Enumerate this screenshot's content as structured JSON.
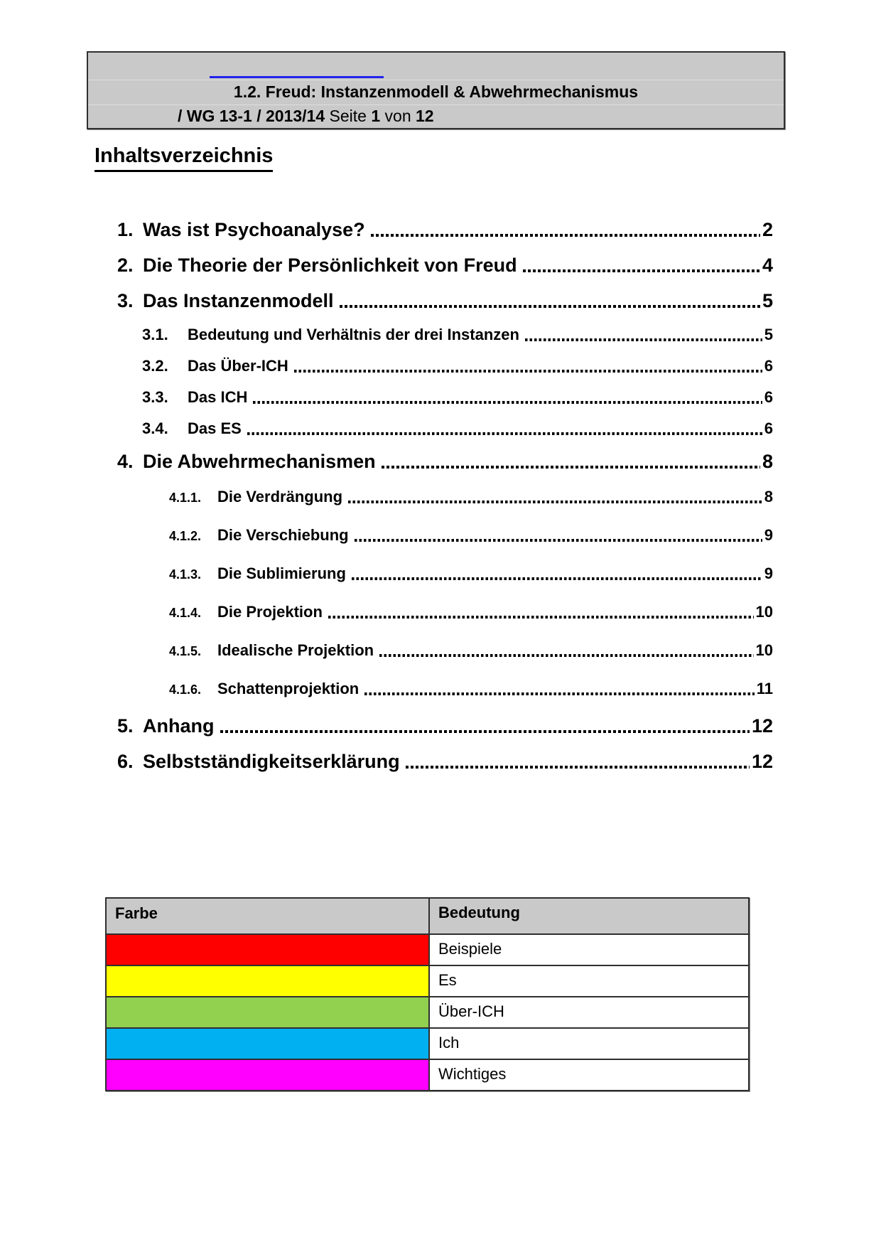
{
  "header_box": {
    "title": "1.2. Freud: Instanzenmodell & Abwehrmechanismus",
    "meta_segments": [
      {
        "text": "/ WG 13-1 / 2013/14",
        "bold": true
      },
      {
        "text": " Seite ",
        "bold": false
      },
      {
        "text": "1",
        "bold": true
      },
      {
        "text": " von ",
        "bold": false
      },
      {
        "text": "12",
        "bold": true
      }
    ],
    "redacted_underline_color": "#2323ee"
  },
  "page_heading": "Inhaltsverzeichnis",
  "toc": {
    "items": [
      {
        "num": "1.",
        "label": "Was ist Psychoanalyse?",
        "page": "2",
        "level": 1
      },
      {
        "num": "2.",
        "label": "Die Theorie der Persönlichkeit von Freud",
        "page": "4",
        "level": 1
      },
      {
        "num": "3.",
        "label": "Das Instanzenmodell",
        "page": "5",
        "level": 1
      },
      {
        "num": "3.1.",
        "label": "Bedeutung und Verhältnis der drei Instanzen",
        "page": "5",
        "level": 2
      },
      {
        "num": "3.2.",
        "label": "Das Über-ICH",
        "page": "6",
        "level": 2
      },
      {
        "num": "3.3.",
        "label": "Das ICH",
        "page": "6",
        "level": 2
      },
      {
        "num": "3.4.",
        "label": "Das ES",
        "page": "6",
        "level": 2
      },
      {
        "num": "4.",
        "label": "Die Abwehrmechanismen",
        "page": "8",
        "level": 1
      },
      {
        "num": "4.1.1.",
        "label": "Die Verdrängung",
        "page": "8",
        "level": 3
      },
      {
        "num": "4.1.2.",
        "label": "Die Verschiebung",
        "page": "9",
        "level": 3
      },
      {
        "num": "4.1.3.",
        "label": "Die Sublimierung",
        "page": "9",
        "level": 3
      },
      {
        "num": "4.1.4.",
        "label": "Die Projektion",
        "page": "10",
        "level": 3
      },
      {
        "num": "4.1.5.",
        "label": "Idealische Projektion",
        "page": "10",
        "level": 3
      },
      {
        "num": "4.1.6.",
        "label": "Schattenprojektion",
        "page": "11",
        "level": 3
      },
      {
        "num": "5.",
        "label": "Anhang",
        "page": "12",
        "level": 1
      },
      {
        "num": "6.",
        "label": "Selbstständigkeitserklärung",
        "page": "12",
        "level": 1
      }
    ]
  },
  "legend_table": {
    "headers": [
      "Farbe",
      "Bedeutung"
    ],
    "rows": [
      {
        "color": "#ff0000",
        "meaning": "Beispiele"
      },
      {
        "color": "#ffff00",
        "meaning": "Es"
      },
      {
        "color": "#92d050",
        "meaning": "Über-ICH"
      },
      {
        "color": "#00b0f0",
        "meaning": "Ich"
      },
      {
        "color": "#ff00ff",
        "meaning": "Wichtiges"
      }
    ]
  }
}
